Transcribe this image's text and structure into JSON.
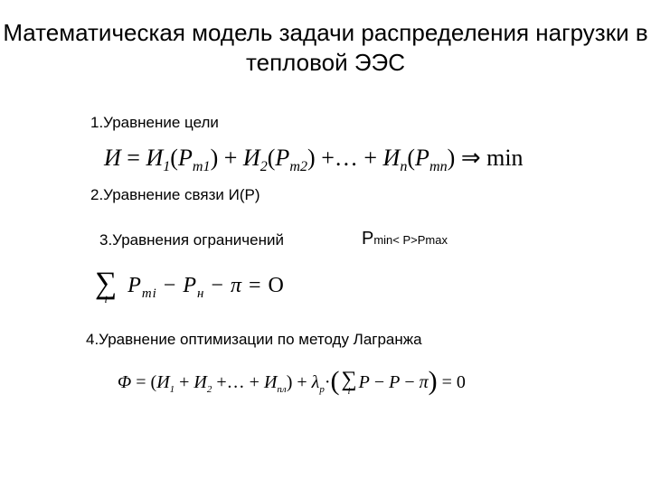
{
  "title": "Математическая модель задачи распределения нагрузки в тепловой ЭЭС",
  "items": {
    "i1": "1.Уравнение цели",
    "i2": "2.Уравнение связи И(P)",
    "i3": "3.Уравнения ограничений",
    "i4": "4.Уравнение оптимизации по методу Лагранжа"
  },
  "constraint": {
    "p_big": "P",
    "min": "min",
    "mid": "< P>",
    "pmax": "Pmax"
  },
  "eq1": {
    "I": "И",
    "eq": " = ",
    "I1": "И",
    "s1": "1",
    "P": "P",
    "m1": "m1",
    "plus": " + ",
    "I2": "И",
    "s2": "2",
    "m2": "m2",
    "dots": " +… ",
    "In": "И",
    "sn": "n",
    "mn": "mn",
    "arrow": " ⇒ ",
    "min": "min"
  },
  "eq2": {
    "sigma_idx": "i",
    "body": "P",
    "mi": "mi",
    "minus": "  −  ",
    "Pn": "P",
    "n": "н",
    "pi": "π",
    "eqzero": "  =  O"
  },
  "eq3": {
    "Phi": "Φ",
    "eq": " = ",
    "I": "И",
    "s1": "1",
    "plus": " + ",
    "s2": "2",
    "dots": " +… + ",
    "snm": "nл",
    "lam": "λ",
    "sp": "p",
    "dot": "·",
    "P": "P",
    "minus": " − ",
    "pi": "π",
    "eqzero": " = 0",
    "sigma_idx": "i"
  },
  "colors": {
    "text": "#000000",
    "bg": "#ffffff"
  },
  "fonts": {
    "body": "Arial",
    "math": "Times New Roman"
  }
}
